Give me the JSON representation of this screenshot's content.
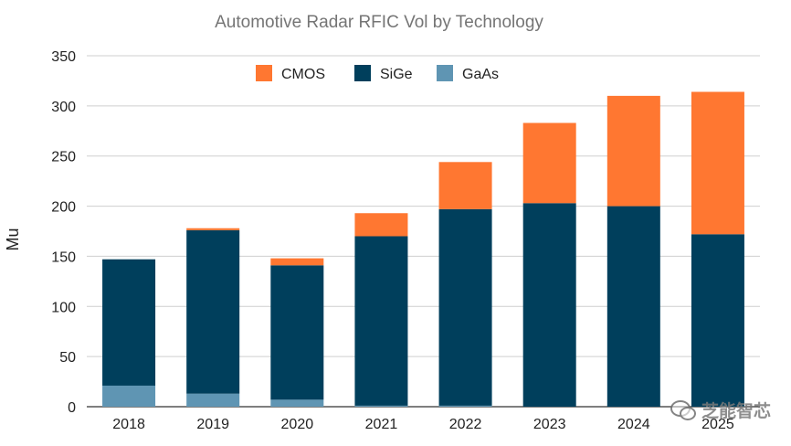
{
  "chart_data": {
    "type": "bar",
    "stacked": true,
    "title": "Automotive Radar RFIC Vol by Technology",
    "xlabel": "",
    "ylabel": "Mu",
    "ylim": [
      0,
      350
    ],
    "yticks": [
      0,
      50,
      100,
      150,
      200,
      250,
      300,
      350
    ],
    "grid": true,
    "legend_position": "top-center",
    "categories": [
      "2018",
      "2019",
      "2020",
      "2021",
      "2022",
      "2023",
      "2024",
      "2025"
    ],
    "series": [
      {
        "name": "GaAs",
        "color": "#5f95b3",
        "values": [
          21,
          13,
          7,
          1,
          1,
          0,
          0,
          0
        ]
      },
      {
        "name": "SiGe",
        "color": "#003f5c",
        "values": [
          126,
          163,
          134,
          169,
          196,
          203,
          200,
          172
        ]
      },
      {
        "name": "CMOS",
        "color": "#ff7731",
        "values": [
          0,
          2,
          7,
          23,
          47,
          80,
          110,
          142
        ]
      }
    ],
    "legend_order": [
      "CMOS",
      "SiGe",
      "GaAs"
    ]
  },
  "watermark": {
    "text": "芝能智芯",
    "icon": "wechat-icon"
  }
}
